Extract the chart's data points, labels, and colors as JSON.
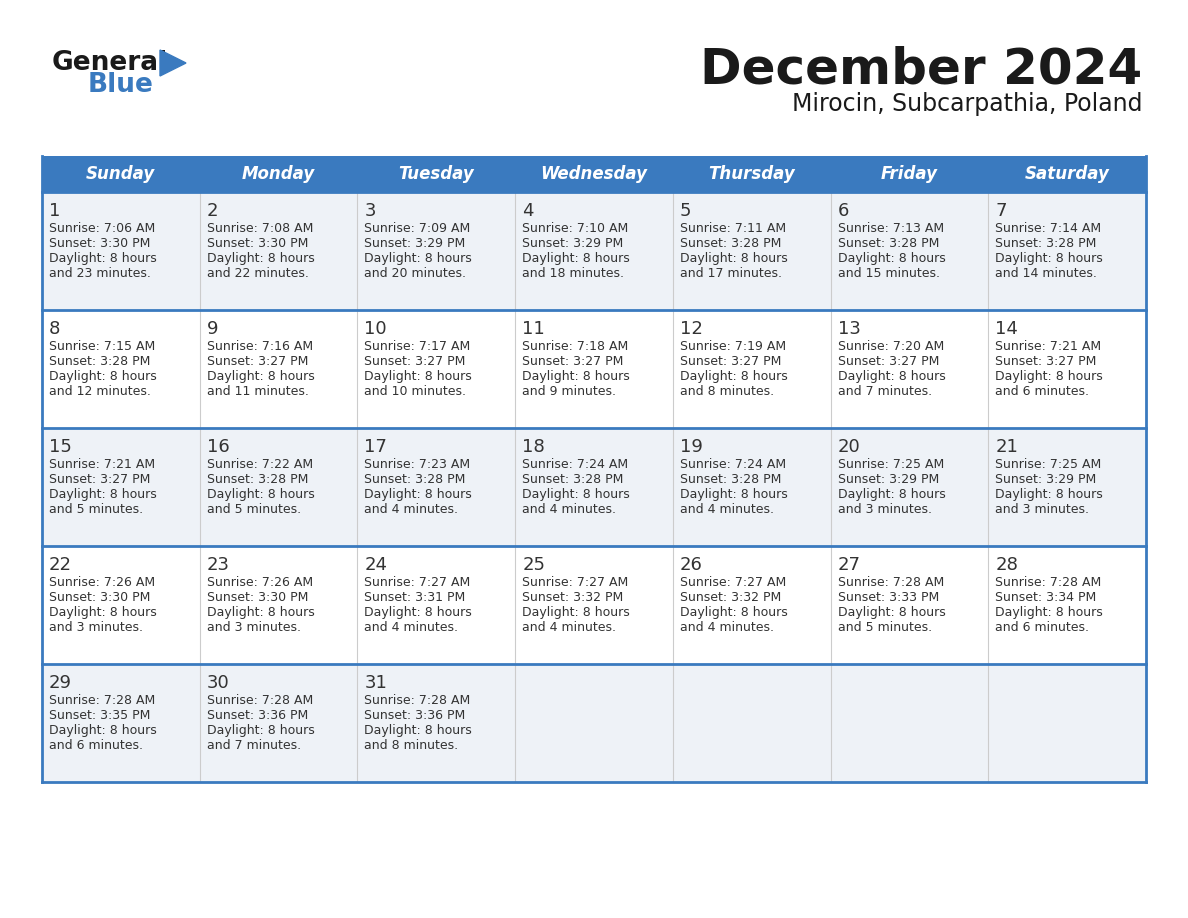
{
  "title": "December 2024",
  "subtitle": "Mirocin, Subcarpathia, Poland",
  "header_bg": "#3a7abf",
  "header_text": "#ffffff",
  "row_bg_odd": "#eef2f7",
  "row_bg_even": "#ffffff",
  "separator_color": "#3a7abf",
  "cell_border_color": "#cccccc",
  "day_headers": [
    "Sunday",
    "Monday",
    "Tuesday",
    "Wednesday",
    "Thursday",
    "Friday",
    "Saturday"
  ],
  "calendar": [
    [
      {
        "day": 1,
        "sunrise": "7:06 AM",
        "sunset": "3:30 PM",
        "daylight_line1": "8 hours",
        "daylight_line2": "and 23 minutes."
      },
      {
        "day": 2,
        "sunrise": "7:08 AM",
        "sunset": "3:30 PM",
        "daylight_line1": "8 hours",
        "daylight_line2": "and 22 minutes."
      },
      {
        "day": 3,
        "sunrise": "7:09 AM",
        "sunset": "3:29 PM",
        "daylight_line1": "8 hours",
        "daylight_line2": "and 20 minutes."
      },
      {
        "day": 4,
        "sunrise": "7:10 AM",
        "sunset": "3:29 PM",
        "daylight_line1": "8 hours",
        "daylight_line2": "and 18 minutes."
      },
      {
        "day": 5,
        "sunrise": "7:11 AM",
        "sunset": "3:28 PM",
        "daylight_line1": "8 hours",
        "daylight_line2": "and 17 minutes."
      },
      {
        "day": 6,
        "sunrise": "7:13 AM",
        "sunset": "3:28 PM",
        "daylight_line1": "8 hours",
        "daylight_line2": "and 15 minutes."
      },
      {
        "day": 7,
        "sunrise": "7:14 AM",
        "sunset": "3:28 PM",
        "daylight_line1": "8 hours",
        "daylight_line2": "and 14 minutes."
      }
    ],
    [
      {
        "day": 8,
        "sunrise": "7:15 AM",
        "sunset": "3:28 PM",
        "daylight_line1": "8 hours",
        "daylight_line2": "and 12 minutes."
      },
      {
        "day": 9,
        "sunrise": "7:16 AM",
        "sunset": "3:27 PM",
        "daylight_line1": "8 hours",
        "daylight_line2": "and 11 minutes."
      },
      {
        "day": 10,
        "sunrise": "7:17 AM",
        "sunset": "3:27 PM",
        "daylight_line1": "8 hours",
        "daylight_line2": "and 10 minutes."
      },
      {
        "day": 11,
        "sunrise": "7:18 AM",
        "sunset": "3:27 PM",
        "daylight_line1": "8 hours",
        "daylight_line2": "and 9 minutes."
      },
      {
        "day": 12,
        "sunrise": "7:19 AM",
        "sunset": "3:27 PM",
        "daylight_line1": "8 hours",
        "daylight_line2": "and 8 minutes."
      },
      {
        "day": 13,
        "sunrise": "7:20 AM",
        "sunset": "3:27 PM",
        "daylight_line1": "8 hours",
        "daylight_line2": "and 7 minutes."
      },
      {
        "day": 14,
        "sunrise": "7:21 AM",
        "sunset": "3:27 PM",
        "daylight_line1": "8 hours",
        "daylight_line2": "and 6 minutes."
      }
    ],
    [
      {
        "day": 15,
        "sunrise": "7:21 AM",
        "sunset": "3:27 PM",
        "daylight_line1": "8 hours",
        "daylight_line2": "and 5 minutes."
      },
      {
        "day": 16,
        "sunrise": "7:22 AM",
        "sunset": "3:28 PM",
        "daylight_line1": "8 hours",
        "daylight_line2": "and 5 minutes."
      },
      {
        "day": 17,
        "sunrise": "7:23 AM",
        "sunset": "3:28 PM",
        "daylight_line1": "8 hours",
        "daylight_line2": "and 4 minutes."
      },
      {
        "day": 18,
        "sunrise": "7:24 AM",
        "sunset": "3:28 PM",
        "daylight_line1": "8 hours",
        "daylight_line2": "and 4 minutes."
      },
      {
        "day": 19,
        "sunrise": "7:24 AM",
        "sunset": "3:28 PM",
        "daylight_line1": "8 hours",
        "daylight_line2": "and 4 minutes."
      },
      {
        "day": 20,
        "sunrise": "7:25 AM",
        "sunset": "3:29 PM",
        "daylight_line1": "8 hours",
        "daylight_line2": "and 3 minutes."
      },
      {
        "day": 21,
        "sunrise": "7:25 AM",
        "sunset": "3:29 PM",
        "daylight_line1": "8 hours",
        "daylight_line2": "and 3 minutes."
      }
    ],
    [
      {
        "day": 22,
        "sunrise": "7:26 AM",
        "sunset": "3:30 PM",
        "daylight_line1": "8 hours",
        "daylight_line2": "and 3 minutes."
      },
      {
        "day": 23,
        "sunrise": "7:26 AM",
        "sunset": "3:30 PM",
        "daylight_line1": "8 hours",
        "daylight_line2": "and 3 minutes."
      },
      {
        "day": 24,
        "sunrise": "7:27 AM",
        "sunset": "3:31 PM",
        "daylight_line1": "8 hours",
        "daylight_line2": "and 4 minutes."
      },
      {
        "day": 25,
        "sunrise": "7:27 AM",
        "sunset": "3:32 PM",
        "daylight_line1": "8 hours",
        "daylight_line2": "and 4 minutes."
      },
      {
        "day": 26,
        "sunrise": "7:27 AM",
        "sunset": "3:32 PM",
        "daylight_line1": "8 hours",
        "daylight_line2": "and 4 minutes."
      },
      {
        "day": 27,
        "sunrise": "7:28 AM",
        "sunset": "3:33 PM",
        "daylight_line1": "8 hours",
        "daylight_line2": "and 5 minutes."
      },
      {
        "day": 28,
        "sunrise": "7:28 AM",
        "sunset": "3:34 PM",
        "daylight_line1": "8 hours",
        "daylight_line2": "and 6 minutes."
      }
    ],
    [
      {
        "day": 29,
        "sunrise": "7:28 AM",
        "sunset": "3:35 PM",
        "daylight_line1": "8 hours",
        "daylight_line2": "and 6 minutes."
      },
      {
        "day": 30,
        "sunrise": "7:28 AM",
        "sunset": "3:36 PM",
        "daylight_line1": "8 hours",
        "daylight_line2": "and 7 minutes."
      },
      {
        "day": 31,
        "sunrise": "7:28 AM",
        "sunset": "3:36 PM",
        "daylight_line1": "8 hours",
        "daylight_line2": "and 8 minutes."
      },
      null,
      null,
      null,
      null
    ]
  ],
  "logo_text1": "General",
  "logo_text2": "Blue",
  "logo_color1": "#1a1a1a",
  "logo_color2": "#3a7abf",
  "logo_triangle_color": "#3a7abf",
  "title_color": "#1a1a1a",
  "subtitle_color": "#1a1a1a",
  "cell_text_color": "#333333",
  "title_fontsize": 36,
  "subtitle_fontsize": 17,
  "header_fontsize": 12,
  "day_num_fontsize": 13,
  "cell_fontsize": 9
}
